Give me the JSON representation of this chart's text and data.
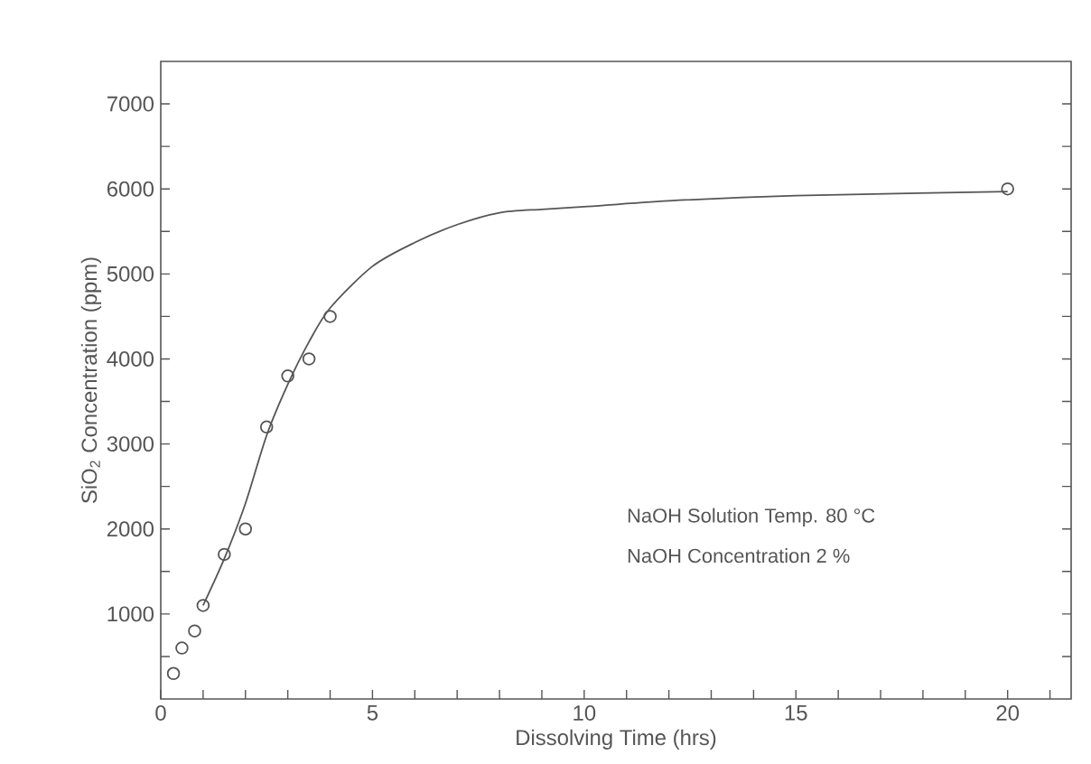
{
  "chart_data": {
    "type": "scatter",
    "xlabel": "Dissolving Time (hrs)",
    "ylabel": "SiO$_{2}$ Concentration (ppm)",
    "xlim": [
      0,
      21.5
    ],
    "ylim": [
      0,
      7500
    ],
    "xticks": [
      0,
      {
        "value": 1,
        "label": null
      },
      {
        "value": 2,
        "label": null
      },
      {
        "value": 3,
        "label": null
      },
      {
        "value": 4,
        "label": null
      },
      5,
      {
        "value": 6,
        "label": null
      },
      {
        "value": 7,
        "label": null
      },
      {
        "value": 8,
        "label": null
      },
      {
        "value": 9,
        "label": null
      },
      10,
      {
        "value": 11,
        "label": null
      },
      {
        "value": 12,
        "label": null
      },
      {
        "value": 13,
        "label": null
      },
      {
        "value": 14,
        "label": null
      },
      15,
      {
        "value": 16,
        "label": null
      },
      {
        "value": 17,
        "label": null
      },
      {
        "value": 18,
        "label": null
      },
      {
        "value": 19,
        "label": null
      },
      20,
      {
        "value": 21,
        "label": null
      }
    ],
    "yticks": [
      {
        "value": 500,
        "label": null
      },
      1000,
      {
        "value": 1500,
        "label": null
      },
      2000,
      {
        "value": 2500,
        "label": null
      },
      3000,
      {
        "value": 3500,
        "label": null
      },
      4000,
      {
        "value": 4500,
        "label": null
      },
      5000,
      {
        "value": 5500,
        "label": null
      },
      6000,
      {
        "value": 6500,
        "label": null
      },
      7000
    ],
    "series": [
      {
        "marker": "circle",
        "color": "#555555",
        "x": [
          0.3,
          0.5,
          0.8,
          1.0,
          1.5,
          2.0,
          2.5,
          3.0,
          3.5,
          4.0,
          20
        ],
        "values": [
          300,
          600,
          800,
          1100,
          1700,
          2000,
          3200,
          3800,
          4000,
          4500,
          6000
        ]
      },
      {
        "type": "line",
        "marker": "none",
        "line_style": "solid",
        "color": "#555555",
        "x": [
          1.0,
          1.5,
          2,
          2.5,
          3,
          3.5,
          4,
          5,
          6,
          7,
          8,
          9,
          10,
          12,
          15,
          20
        ],
        "values": [
          1100,
          1650,
          2300,
          3100,
          3700,
          4200,
          4600,
          5090,
          5370,
          5580,
          5720,
          5760,
          5790,
          5860,
          5920,
          5970
        ]
      }
    ],
    "annotations": [
      "NaOH  Solution Temp. 80 °C",
      "NaOH  Concentration    2 %"
    ]
  }
}
